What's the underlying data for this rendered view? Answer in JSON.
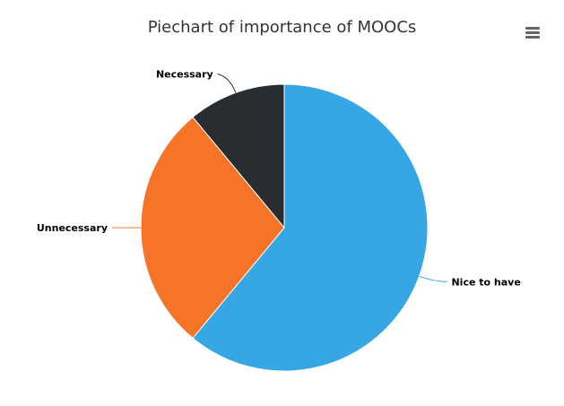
{
  "chart_data": {
    "type": "pie",
    "title": "Piechart of importance of MOOCs",
    "categories": [
      "Nice to have",
      "Unnecessary",
      "Necessary"
    ],
    "values": [
      61,
      28,
      11
    ],
    "colors": [
      "#36a6e4",
      "#f57428",
      "#2a2d30"
    ],
    "legend": "none"
  },
  "toolbar": {
    "menu_icon": "hamburger-menu-icon"
  }
}
